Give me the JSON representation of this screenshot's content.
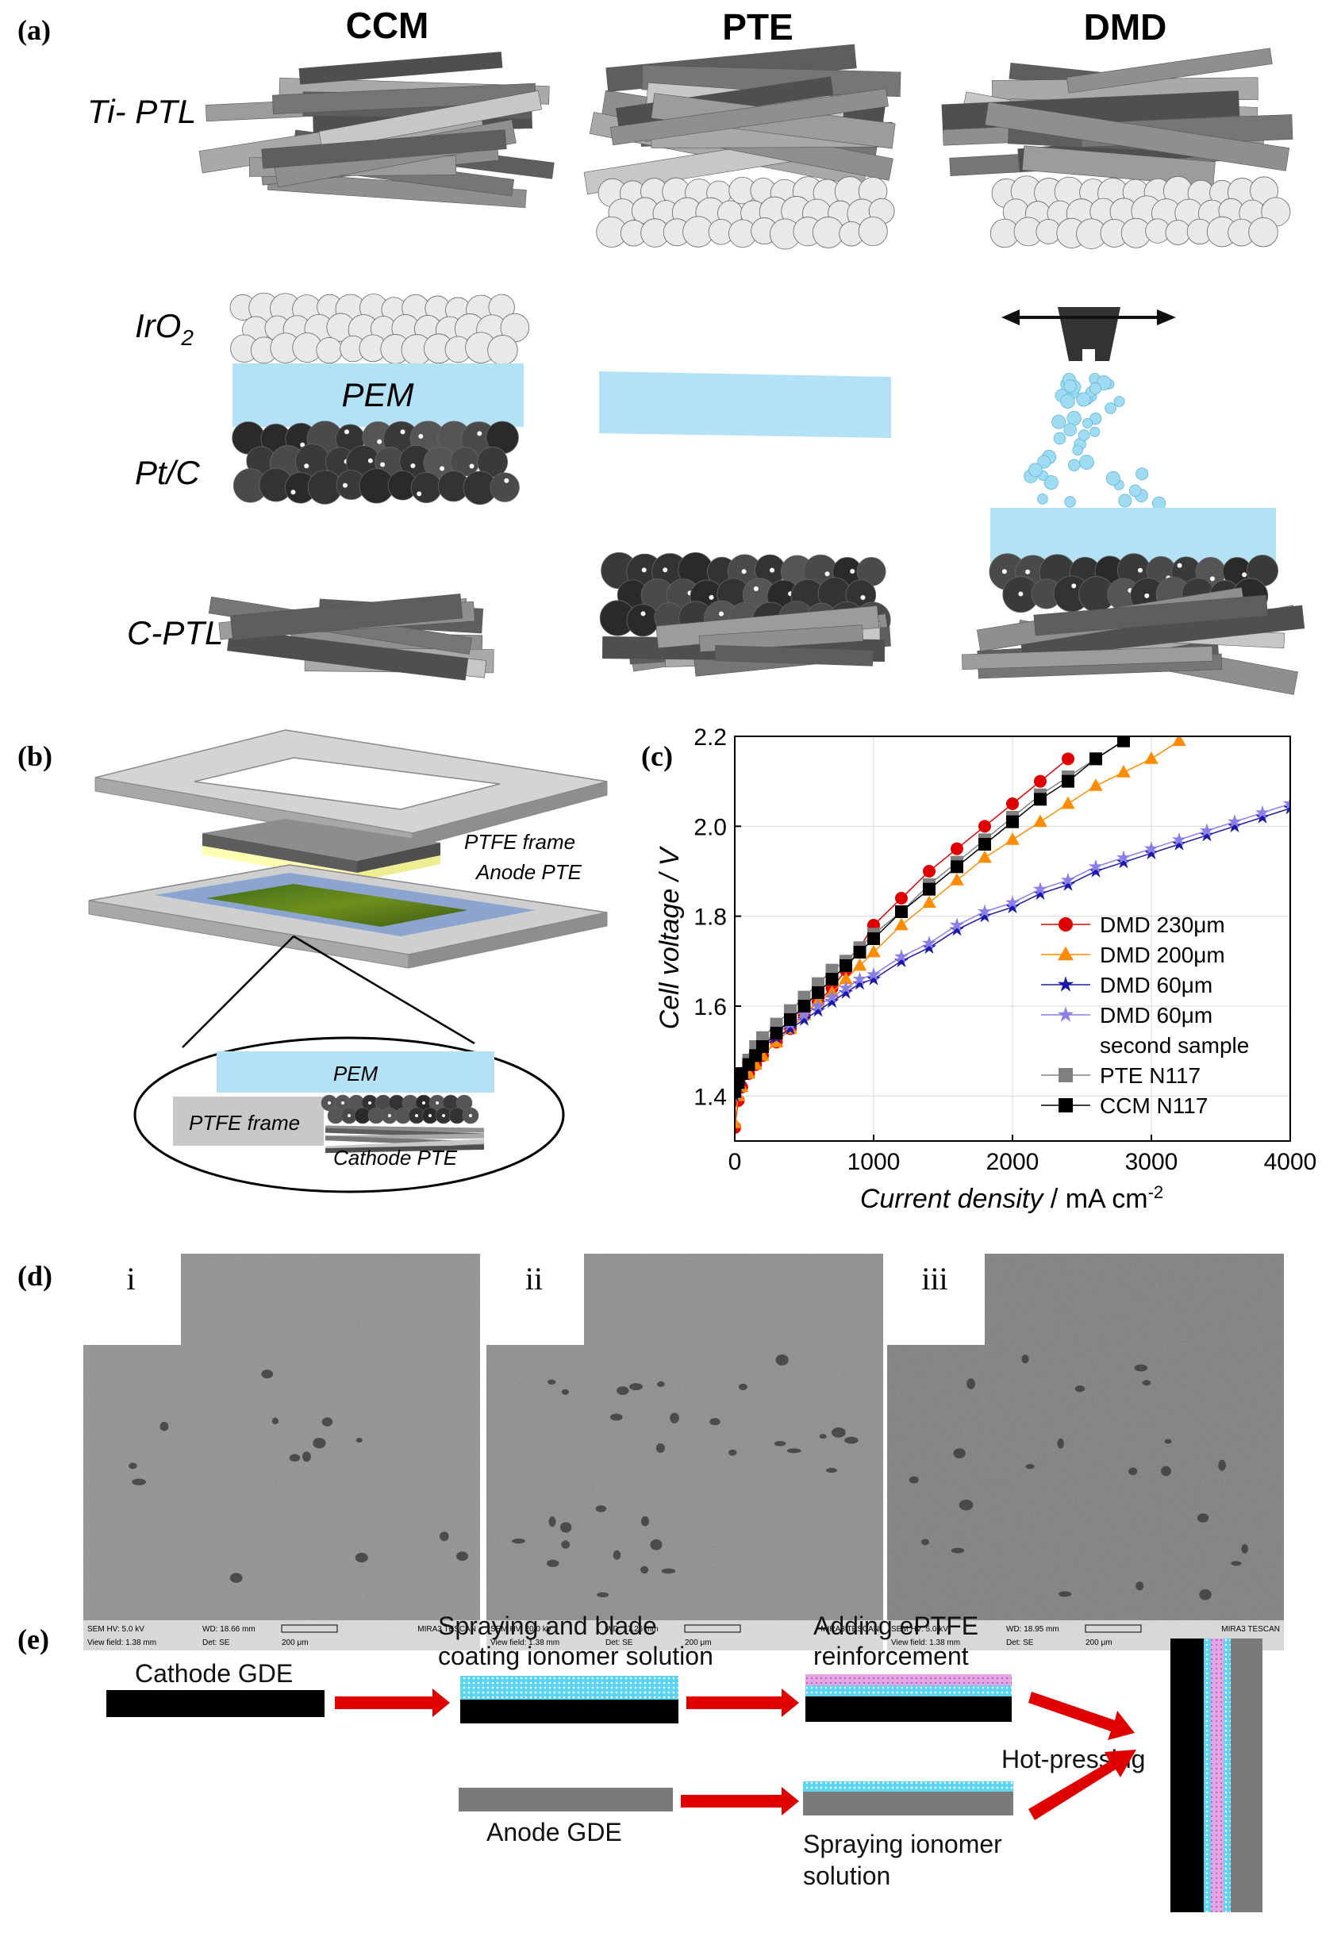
{
  "panel_a": {
    "label": "(a)",
    "columns": [
      "CCM",
      "PTE",
      "DMD"
    ],
    "layer_labels": {
      "ti_ptl": "Ti- PTL",
      "iro2_base": "IrO",
      "iro2_sub": "2",
      "pem": "PEM",
      "ptc": "Pt/C",
      "cptl": "C-PTL"
    }
  },
  "panel_b": {
    "label": "(b)",
    "labels": {
      "ptfe_frame": "PTFE frame",
      "anode_pte": "Anode PTE",
      "pem": "PEM",
      "ptfe_frame_inset": "PTFE frame",
      "cathode_pte": "Cathode PTE"
    }
  },
  "panel_c": {
    "label": "(c)"
  },
  "chart_data": {
    "type": "line",
    "xlabel_italic": "Current density",
    "xlabel_unit": " / mA cm",
    "xlabel_exp": "-2",
    "ylabel": "Cell voltage / V",
    "xlim": [
      0,
      4000
    ],
    "ylim": [
      1.3,
      2.2
    ],
    "xticks": [
      "0",
      "1000",
      "2000",
      "3000",
      "4000"
    ],
    "yticks": [
      "1.4",
      "1.6",
      "1.8",
      "2.0",
      "2.2"
    ],
    "grid": true,
    "legend_position": "bottom-right",
    "series": [
      {
        "name": "DMD 230μm",
        "name2": "",
        "color": "#e00000",
        "marker": "circle",
        "x": [
          0,
          25,
          50,
          100,
          150,
          200,
          300,
          400,
          500,
          600,
          700,
          800,
          900,
          1000,
          1200,
          1400,
          1600,
          1800,
          2000,
          2200,
          2400
        ],
        "y": [
          1.33,
          1.39,
          1.42,
          1.45,
          1.47,
          1.49,
          1.52,
          1.55,
          1.58,
          1.61,
          1.64,
          1.68,
          1.73,
          1.78,
          1.84,
          1.9,
          1.95,
          2.0,
          2.05,
          2.1,
          2.15
        ]
      },
      {
        "name": "DMD 200μm",
        "name2": "",
        "color": "#ff8c00",
        "marker": "triangle",
        "x": [
          0,
          25,
          50,
          100,
          150,
          200,
          300,
          400,
          500,
          600,
          700,
          800,
          900,
          1000,
          1200,
          1400,
          1600,
          1800,
          2000,
          2200,
          2400,
          2600,
          2800,
          3000,
          3200
        ],
        "y": [
          1.34,
          1.4,
          1.42,
          1.45,
          1.47,
          1.49,
          1.52,
          1.55,
          1.58,
          1.61,
          1.63,
          1.66,
          1.69,
          1.72,
          1.78,
          1.83,
          1.88,
          1.93,
          1.97,
          2.01,
          2.05,
          2.09,
          2.12,
          2.15,
          2.19
        ]
      },
      {
        "name": "DMD 60μm",
        "name2": "",
        "color": "#1a1aa8",
        "marker": "star",
        "x": [
          0,
          25,
          50,
          100,
          150,
          200,
          300,
          400,
          500,
          600,
          700,
          800,
          900,
          1000,
          1200,
          1400,
          1600,
          1800,
          2000,
          2200,
          2400,
          2600,
          2800,
          3000,
          3200,
          3400,
          3600,
          3800,
          4000
        ],
        "y": [
          1.4,
          1.42,
          1.44,
          1.47,
          1.49,
          1.51,
          1.53,
          1.55,
          1.57,
          1.59,
          1.61,
          1.63,
          1.65,
          1.66,
          1.7,
          1.73,
          1.77,
          1.8,
          1.82,
          1.85,
          1.87,
          1.9,
          1.92,
          1.94,
          1.96,
          1.98,
          2.0,
          2.02,
          2.04
        ]
      },
      {
        "name": "DMD 60μm",
        "name2": "second sample",
        "color": "#8a7fe8",
        "marker": "star",
        "x": [
          0,
          25,
          50,
          100,
          150,
          200,
          300,
          400,
          500,
          600,
          700,
          800,
          900,
          1000,
          1200,
          1400,
          1600,
          1800,
          2000,
          2200,
          2400,
          2600,
          2800,
          3000,
          3200,
          3400,
          3600,
          3800,
          4000
        ],
        "y": [
          1.41,
          1.43,
          1.45,
          1.48,
          1.5,
          1.52,
          1.54,
          1.56,
          1.58,
          1.6,
          1.62,
          1.64,
          1.66,
          1.67,
          1.71,
          1.74,
          1.78,
          1.81,
          1.83,
          1.86,
          1.88,
          1.91,
          1.93,
          1.95,
          1.97,
          1.99,
          2.01,
          2.03,
          2.05
        ]
      },
      {
        "name": "PTE N117",
        "name2": "",
        "color": "#808080",
        "marker": "square",
        "x": [
          0,
          25,
          50,
          100,
          150,
          200,
          300,
          400,
          500,
          600,
          700,
          800,
          900,
          1000,
          1200,
          1400,
          1600,
          1800,
          2000,
          2200,
          2400,
          2600,
          2800
        ],
        "y": [
          1.42,
          1.43,
          1.45,
          1.48,
          1.51,
          1.53,
          1.56,
          1.59,
          1.62,
          1.65,
          1.68,
          1.7,
          1.73,
          1.76,
          1.81,
          1.87,
          1.92,
          1.97,
          2.02,
          2.07,
          2.11,
          2.15,
          2.19
        ]
      },
      {
        "name": "CCM N117",
        "name2": "",
        "color": "#000000",
        "marker": "square",
        "x": [
          0,
          25,
          50,
          100,
          150,
          200,
          300,
          400,
          500,
          600,
          700,
          800,
          900,
          1000,
          1200,
          1400,
          1600,
          1800,
          2000,
          2200,
          2400,
          2600,
          2800
        ],
        "y": [
          1.41,
          1.43,
          1.45,
          1.47,
          1.49,
          1.51,
          1.54,
          1.57,
          1.6,
          1.63,
          1.66,
          1.69,
          1.72,
          1.75,
          1.81,
          1.86,
          1.91,
          1.96,
          2.01,
          2.06,
          2.1,
          2.15,
          2.19
        ]
      }
    ]
  },
  "panel_d": {
    "label": "(d)",
    "images": [
      {
        "roman": "i",
        "hv": "SEM HV: 5.0 kV",
        "wd": "WD: 18.66 mm",
        "view": "View field: 1.38 mm",
        "det": "Det: SE",
        "scale": "200 μm",
        "brand": "MIRA3 TESCAN"
      },
      {
        "roman": "ii",
        "hv": "SEM HV: 20.0 kV",
        "wd": "WD: 17.26 mm",
        "view": "View field: 1.38 mm",
        "det": "Det: SE",
        "scale": "200 μm",
        "brand": "MIRA3 TESCAN"
      },
      {
        "roman": "iii",
        "hv": "SEM HV: 5.0 kV",
        "wd": "WD: 18.95 mm",
        "view": "View field: 1.38 mm",
        "det": "Det: SE",
        "scale": "200 μm",
        "brand": "MIRA3 TESCAN"
      }
    ]
  },
  "panel_e": {
    "label": "(e)",
    "cathode_gde": "Cathode GDE",
    "spray_blade_1": "Spraying and blade",
    "spray_blade_2": "coating ionomer solution",
    "eptfe_1": "Adding ePTFE",
    "eptfe_2": "reinforcement",
    "hot_pressing": "Hot-pressing",
    "anode_gde": "Anode GDE",
    "spray_ionomer_1": "Spraying ionomer",
    "spray_ionomer_2": "solution"
  }
}
